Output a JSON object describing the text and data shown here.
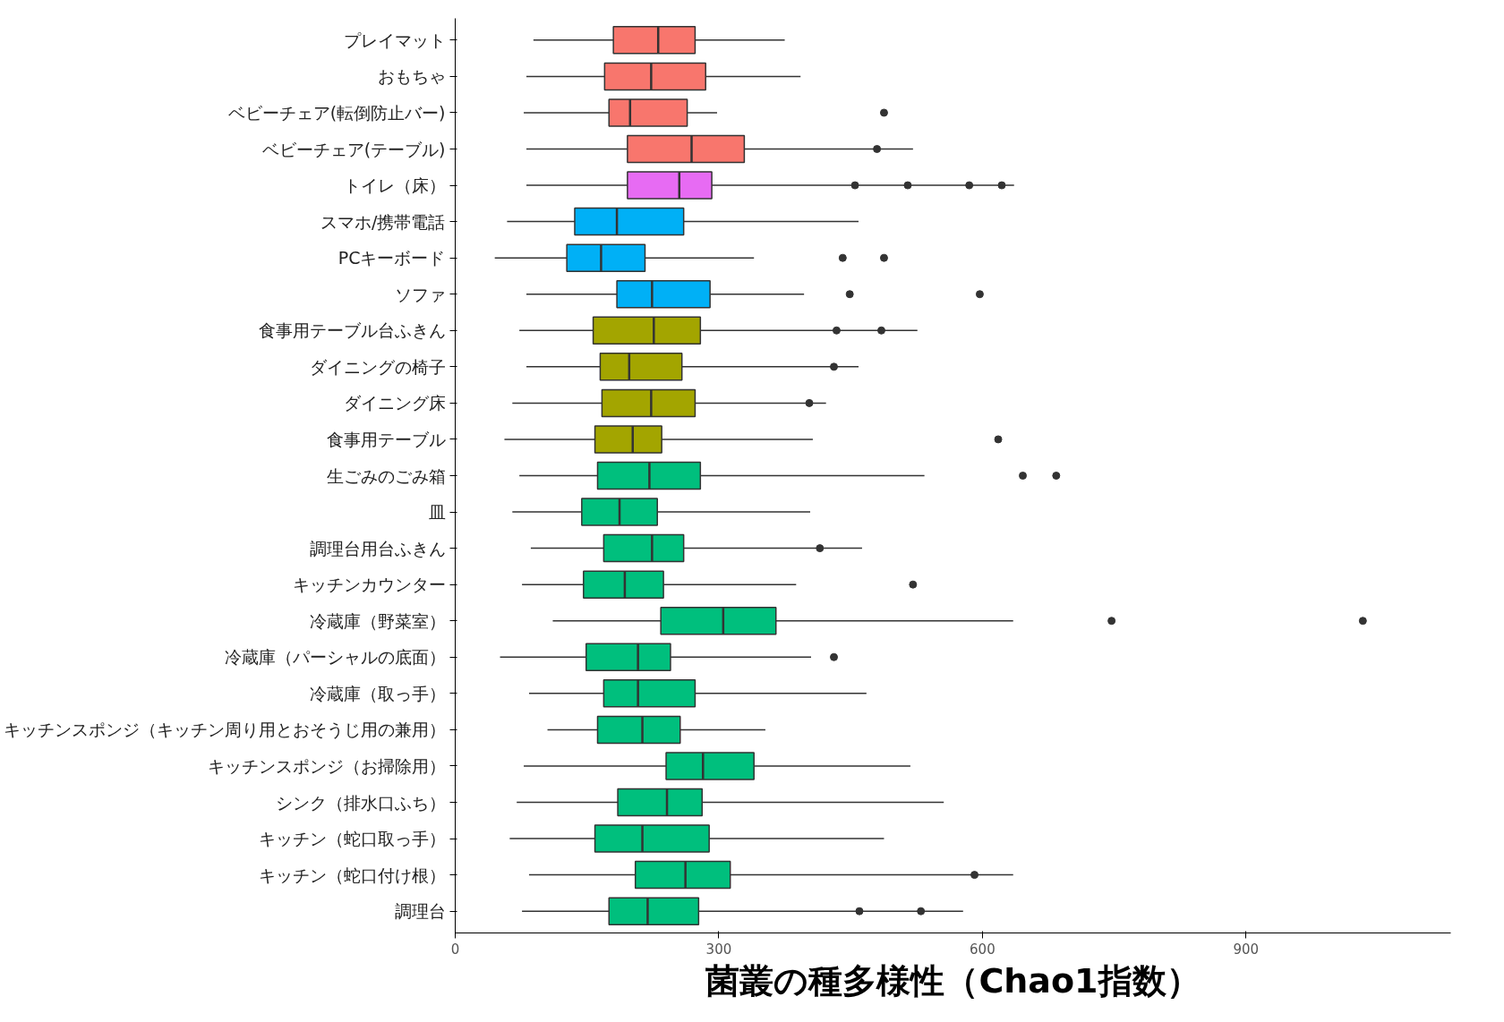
{
  "chart_data": {
    "type": "box",
    "orientation": "horizontal",
    "xlabel": "菌叢の種多様性（Chao1指数）",
    "categories": [
      "プレイマット",
      "おもちゃ",
      "ベビーチェア(転倒防止バー)",
      "ベビーチェア(テーブル)",
      "トイレ（床）",
      "スマホ/携帯電話",
      "PCキーボード",
      "ソファ",
      "食事用テーブル台ふきん",
      "ダイニングの椅子",
      "ダイニング床",
      "食事用テーブル",
      "生ごみのごみ箱",
      "皿",
      "調理台用台ふきん",
      "キッチンカウンター",
      "冷蔵庫（野菜室）",
      "冷蔵庫（パーシャルの底面）",
      "冷蔵庫（取っ手）",
      "キッチンスポンジ（キッチン周り用とおそうじ用の兼用）",
      "キッチンスポンジ（お掃除用）",
      "シンク（排水口ふち）",
      "キッチン（蛇口取っ手）",
      "キッチン（蛇口付け根）",
      "調理台"
    ],
    "colors": [
      "#f8766d",
      "#f8766d",
      "#f8766d",
      "#f8766d",
      "#e76bf3",
      "#00b0f6",
      "#00b0f6",
      "#00b0f6",
      "#a3a500",
      "#a3a500",
      "#a3a500",
      "#a3a500",
      "#00bf7d",
      "#00bf7d",
      "#00bf7d",
      "#00bf7d",
      "#00bf7d",
      "#00bf7d",
      "#00bf7d",
      "#00bf7d",
      "#00bf7d",
      "#00bf7d",
      "#00bf7d",
      "#00bf7d",
      "#00bf7d"
    ],
    "boxes": [
      {
        "low": 89,
        "q1": 180,
        "median": 231,
        "q3": 273,
        "high": 375
      },
      {
        "low": 81,
        "q1": 170,
        "median": 223,
        "q3": 285,
        "high": 393
      },
      {
        "low": 78,
        "q1": 175,
        "median": 199,
        "q3": 264,
        "high": 298,
        "outliers": [
          488
        ]
      },
      {
        "low": 81,
        "q1": 196,
        "median": 269,
        "q3": 329,
        "high": 521,
        "outliers": [
          480
        ]
      },
      {
        "low": 81,
        "q1": 196,
        "median": 255,
        "q3": 292,
        "high": 636,
        "outliers": [
          455,
          515,
          585,
          622
        ]
      },
      {
        "low": 59,
        "q1": 136,
        "median": 184,
        "q3": 260,
        "high": 459
      },
      {
        "low": 45,
        "q1": 127,
        "median": 166,
        "q3": 216,
        "high": 340,
        "outliers": [
          441,
          488
        ]
      },
      {
        "low": 81,
        "q1": 184,
        "median": 224,
        "q3": 290,
        "high": 397,
        "outliers": [
          449,
          597
        ]
      },
      {
        "low": 73,
        "q1": 157,
        "median": 226,
        "q3": 279,
        "high": 526,
        "outliers": [
          434,
          485
        ]
      },
      {
        "low": 81,
        "q1": 165,
        "median": 198,
        "q3": 258,
        "high": 459,
        "outliers": [
          431
        ]
      },
      {
        "low": 65,
        "q1": 167,
        "median": 223,
        "q3": 273,
        "high": 422,
        "outliers": [
          403
        ]
      },
      {
        "low": 56,
        "q1": 159,
        "median": 202,
        "q3": 235,
        "high": 407,
        "outliers": [
          618
        ]
      },
      {
        "low": 73,
        "q1": 162,
        "median": 221,
        "q3": 279,
        "high": 534,
        "outliers": [
          646,
          684
        ]
      },
      {
        "low": 65,
        "q1": 144,
        "median": 187,
        "q3": 230,
        "high": 404
      },
      {
        "low": 86,
        "q1": 169,
        "median": 224,
        "q3": 260,
        "high": 463,
        "outliers": [
          415
        ]
      },
      {
        "low": 76,
        "q1": 146,
        "median": 193,
        "q3": 237,
        "high": 388,
        "outliers": [
          521
        ]
      },
      {
        "low": 111,
        "q1": 234,
        "median": 305,
        "q3": 365,
        "high": 635,
        "outliers": [
          747,
          1033
        ]
      },
      {
        "low": 51,
        "q1": 149,
        "median": 208,
        "q3": 245,
        "high": 405,
        "outliers": [
          431
        ]
      },
      {
        "low": 84,
        "q1": 169,
        "median": 208,
        "q3": 273,
        "high": 468
      },
      {
        "low": 105,
        "q1": 162,
        "median": 213,
        "q3": 256,
        "high": 353
      },
      {
        "low": 78,
        "q1": 240,
        "median": 282,
        "q3": 340,
        "high": 518
      },
      {
        "low": 70,
        "q1": 185,
        "median": 241,
        "q3": 281,
        "high": 556
      },
      {
        "low": 62,
        "q1": 159,
        "median": 213,
        "q3": 289,
        "high": 488
      },
      {
        "low": 84,
        "q1": 205,
        "median": 262,
        "q3": 313,
        "high": 635,
        "outliers": [
          591
        ]
      },
      {
        "low": 76,
        "q1": 175,
        "median": 219,
        "q3": 277,
        "high": 578,
        "outliers": [
          460,
          530
        ]
      }
    ],
    "xlim": [
      0,
      1133
    ],
    "xticks": [
      0,
      300,
      600,
      900
    ]
  }
}
